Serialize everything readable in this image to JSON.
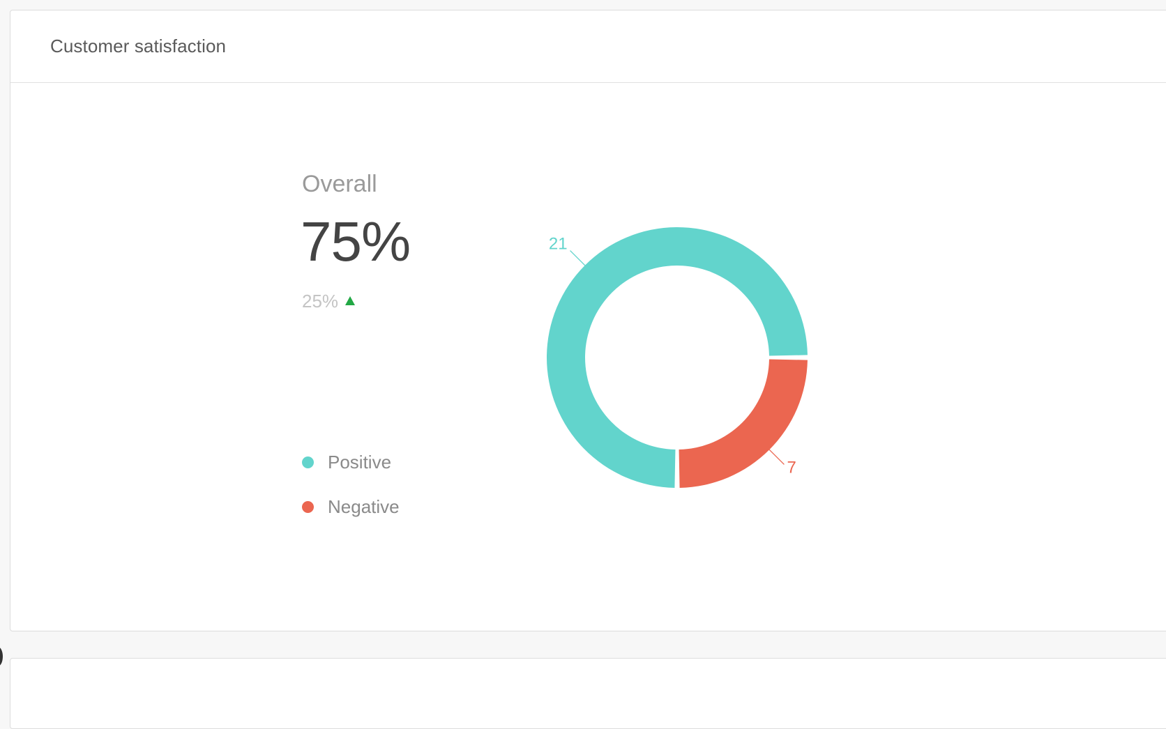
{
  "card": {
    "title": "Customer satisfaction"
  },
  "summary": {
    "label": "Overall",
    "value": "75%",
    "change": "25%",
    "change_direction": "up",
    "change_color": "#22a845"
  },
  "legend": [
    {
      "label": "Positive",
      "color": "#62d4cc"
    },
    {
      "label": "Negative",
      "color": "#eb6650"
    }
  ],
  "chart_data": {
    "type": "pie",
    "categories": [
      "Positive",
      "Negative"
    ],
    "values": [
      21,
      7
    ],
    "colors": [
      "#62d4cc",
      "#eb6650"
    ],
    "data_labels": [
      "21",
      "7"
    ],
    "grid": false
  }
}
